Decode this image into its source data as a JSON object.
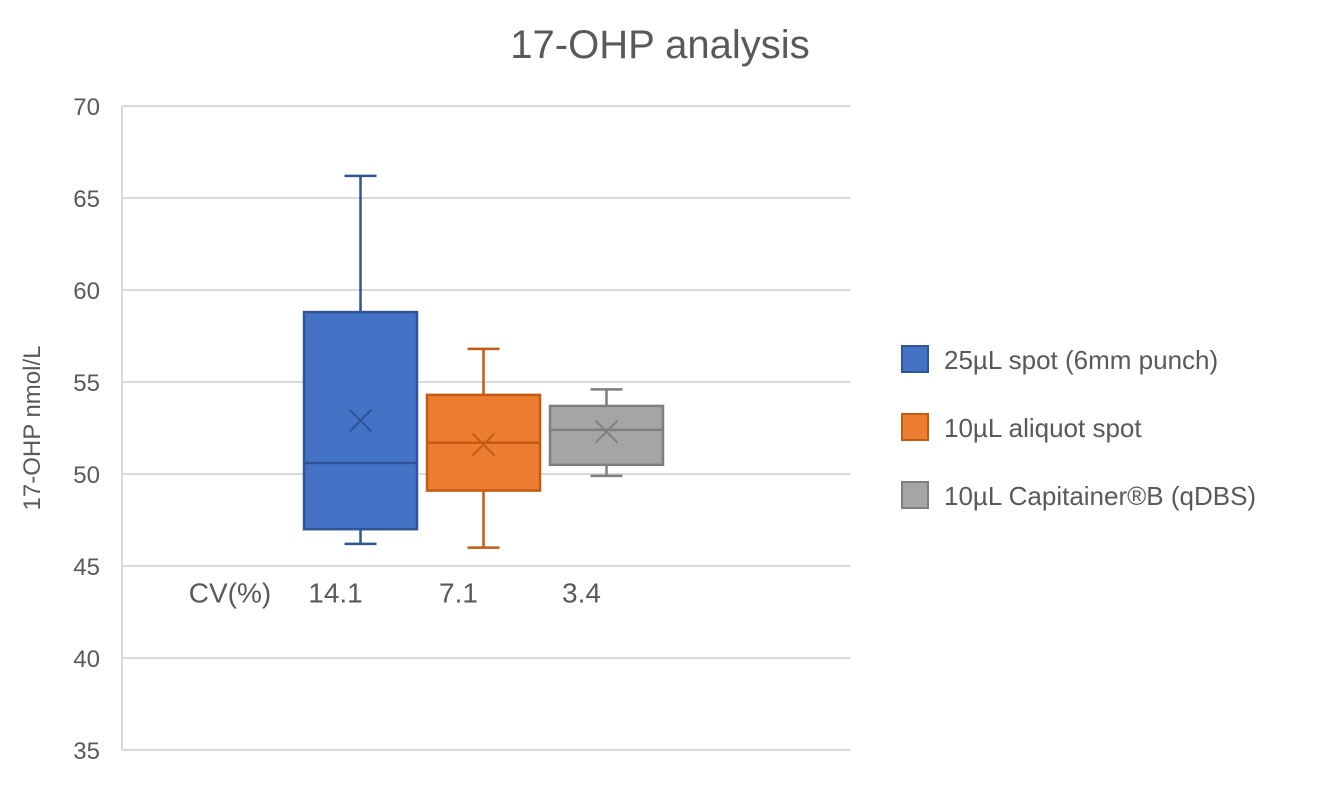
{
  "chart_data": {
    "type": "box",
    "title": "17-OHP analysis",
    "ylabel": "17-OHP nmol/L",
    "xlabel": "",
    "ylim": [
      35,
      70
    ],
    "yticks": [
      35,
      40,
      45,
      50,
      55,
      60,
      65,
      70
    ],
    "grid": true,
    "legend_position": "right",
    "series": [
      {
        "name": "25µL spot (6mm punch)",
        "color": "#4472C4",
        "edge": "#2F5597",
        "whisker_min": 46.2,
        "q1": 47.0,
        "median": 50.6,
        "q3": 58.8,
        "whisker_max": 66.2,
        "mean": 52.9
      },
      {
        "name": "10µL aliquot spot",
        "color": "#ED7D31",
        "edge": "#C55A11",
        "whisker_min": 46.0,
        "q1": 49.1,
        "median": 51.7,
        "q3": 54.3,
        "whisker_max": 56.8,
        "mean": 51.6
      },
      {
        "name": "10µL Capitainer®B (qDBS)",
        "color": "#A5A5A5",
        "edge": "#7F7F7F",
        "whisker_min": 49.9,
        "q1": 50.5,
        "median": 52.4,
        "q3": 53.7,
        "whisker_max": 54.6,
        "mean": 52.3
      }
    ],
    "annotations": {
      "cv_label": "CV(%)",
      "cv_values": [
        "14.1",
        "7.1",
        "3.4"
      ],
      "cv_y": 43.5
    }
  }
}
